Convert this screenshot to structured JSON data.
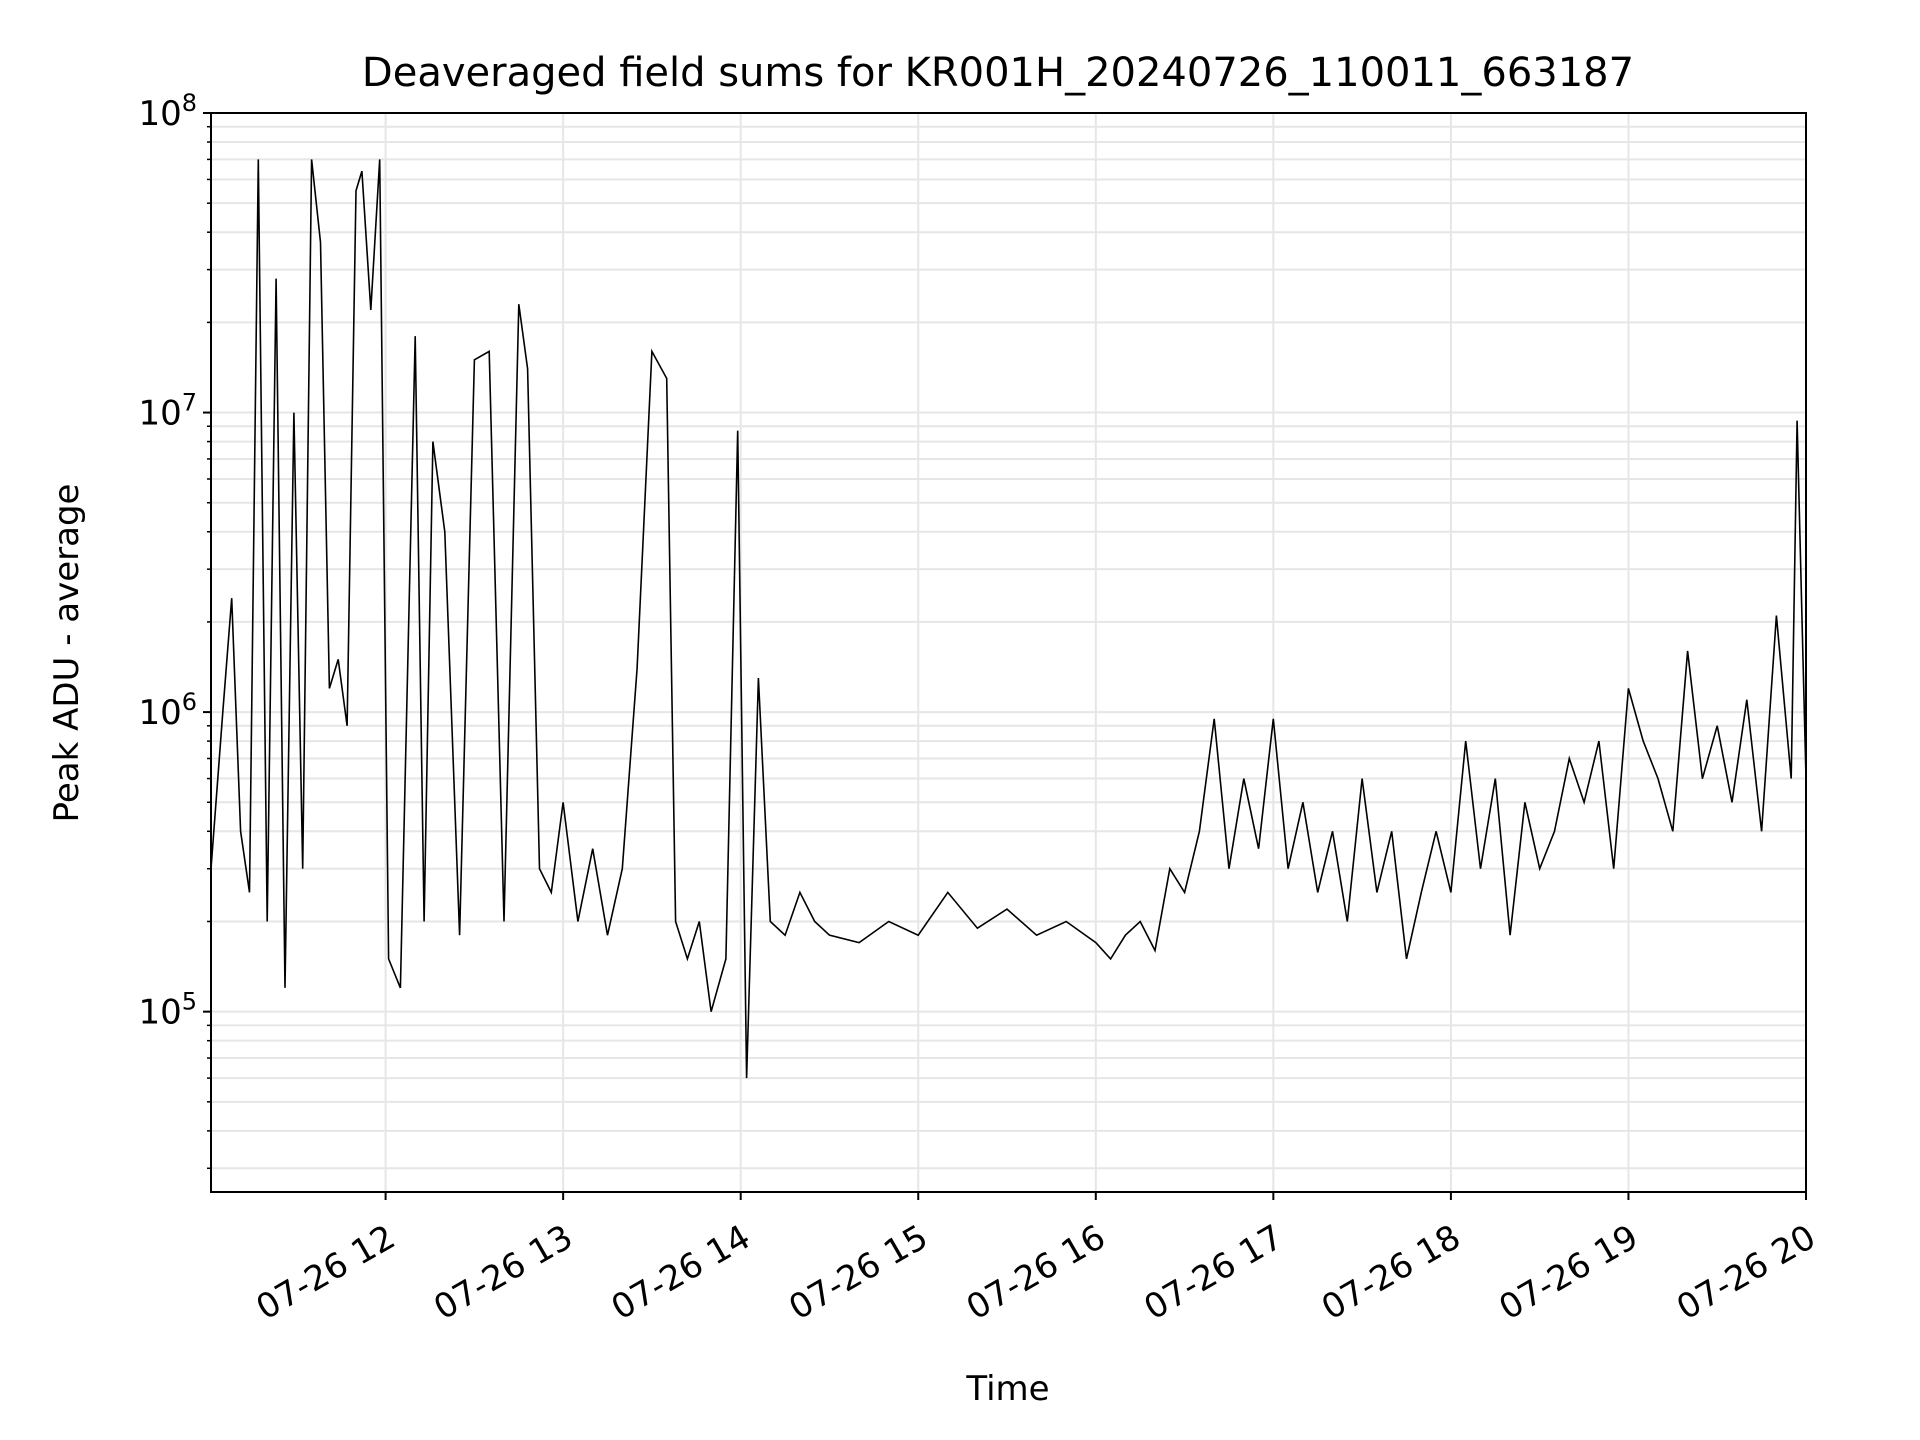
{
  "chart_data": {
    "type": "line",
    "title": "Deaveraged field sums for KR001H_20240726_110011_663187",
    "xlabel": "Time",
    "ylabel": "Peak ADU - average",
    "yscale": "log",
    "ylim": [
      25000,
      100000000
    ],
    "xlim": [
      "07-26 11:01",
      "07-26 20:00"
    ],
    "grid": "major and minor",
    "line_color": "#000000",
    "grid_color": "#e6e6e6",
    "x_ticks": [
      {
        "value": "07-26 12",
        "label": "07-26 12"
      },
      {
        "value": "07-26 13",
        "label": "07-26 13"
      },
      {
        "value": "07-26 14",
        "label": "07-26 14"
      },
      {
        "value": "07-26 15",
        "label": "07-26 15"
      },
      {
        "value": "07-26 16",
        "label": "07-26 16"
      },
      {
        "value": "07-26 17",
        "label": "07-26 17"
      },
      {
        "value": "07-26 18",
        "label": "07-26 18"
      },
      {
        "value": "07-26 19",
        "label": "07-26 19"
      },
      {
        "value": "07-26 20",
        "label": "07-26 20"
      }
    ],
    "y_ticks": [
      {
        "value": 100000,
        "base": "10",
        "exp": "5"
      },
      {
        "value": 1000000,
        "base": "10",
        "exp": "6"
      },
      {
        "value": 10000000,
        "base": "10",
        "exp": "7"
      },
      {
        "value": 100000000,
        "base": "10",
        "exp": "8"
      }
    ],
    "series": [
      {
        "x": [
          "07-26 11:01",
          "07-26 11:05",
          "07-26 11:08",
          "07-26 11:11",
          "07-26 11:14",
          "07-26 11:17",
          "07-26 11:20",
          "07-26 11:23",
          "07-26 11:26",
          "07-26 11:29",
          "07-26 11:32",
          "07-26 11:35",
          "07-26 11:38",
          "07-26 11:41",
          "07-26 11:44",
          "07-26 11:47",
          "07-26 11:50",
          "07-26 11:52",
          "07-26 11:55",
          "07-26 11:58",
          "07-26 12:01",
          "07-26 12:05",
          "07-26 12:10",
          "07-26 12:13",
          "07-26 12:16",
          "07-26 12:20",
          "07-26 12:25",
          "07-26 12:30",
          "07-26 12:35",
          "07-26 12:40",
          "07-26 12:45",
          "07-26 12:48",
          "07-26 12:52",
          "07-26 12:56",
          "07-26 13:00",
          "07-26 13:05",
          "07-26 13:10",
          "07-26 13:15",
          "07-26 13:20",
          "07-26 13:25",
          "07-26 13:30",
          "07-26 13:35",
          "07-26 13:38",
          "07-26 13:42",
          "07-26 13:46",
          "07-26 13:50",
          "07-26 13:55",
          "07-26 13:59",
          "07-26 14:02",
          "07-26 14:06",
          "07-26 14:10",
          "07-26 14:15",
          "07-26 14:20",
          "07-26 14:25",
          "07-26 14:30",
          "07-26 14:40",
          "07-26 14:50",
          "07-26 15:00",
          "07-26 15:10",
          "07-26 15:20",
          "07-26 15:30",
          "07-26 15:40",
          "07-26 15:50",
          "07-26 16:00",
          "07-26 16:05",
          "07-26 16:10",
          "07-26 16:15",
          "07-26 16:20",
          "07-26 16:25",
          "07-26 16:30",
          "07-26 16:35",
          "07-26 16:40",
          "07-26 16:45",
          "07-26 16:50",
          "07-26 16:55",
          "07-26 17:00",
          "07-26 17:05",
          "07-26 17:10",
          "07-26 17:15",
          "07-26 17:20",
          "07-26 17:25",
          "07-26 17:30",
          "07-26 17:35",
          "07-26 17:40",
          "07-26 17:45",
          "07-26 17:50",
          "07-26 17:55",
          "07-26 18:00",
          "07-26 18:05",
          "07-26 18:10",
          "07-26 18:15",
          "07-26 18:20",
          "07-26 18:25",
          "07-26 18:30",
          "07-26 18:35",
          "07-26 18:40",
          "07-26 18:45",
          "07-26 18:50",
          "07-26 18:55",
          "07-26 19:00",
          "07-26 19:05",
          "07-26 19:10",
          "07-26 19:15",
          "07-26 19:20",
          "07-26 19:25",
          "07-26 19:30",
          "07-26 19:35",
          "07-26 19:40",
          "07-26 19:45",
          "07-26 19:50",
          "07-26 19:55",
          "07-26 19:57",
          "07-26 19:59",
          "07-26 20:00"
        ],
        "y": [
          300000,
          1000000,
          2400000,
          400000,
          250000,
          70000000,
          200000,
          28000000,
          120000,
          10000000,
          300000,
          70000000,
          37000000,
          1200000,
          1500000,
          900000,
          55000000,
          64000000,
          22000000,
          70000000,
          150000,
          120000,
          18000000,
          200000,
          8000000,
          4000000,
          180000,
          15000000,
          16000000,
          200000,
          23000000,
          14000000,
          300000,
          250000,
          500000,
          200000,
          350000,
          180000,
          300000,
          1400000,
          16000000,
          13000000,
          200000,
          150000,
          200000,
          100000,
          150000,
          8700000,
          60000,
          1300000,
          200000,
          180000,
          250000,
          200000,
          180000,
          170000,
          200000,
          180000,
          250000,
          190000,
          220000,
          180000,
          200000,
          170000,
          150000,
          180000,
          200000,
          160000,
          300000,
          250000,
          400000,
          950000,
          300000,
          600000,
          350000,
          950000,
          300000,
          500000,
          250000,
          400000,
          200000,
          600000,
          250000,
          400000,
          150000,
          250000,
          400000,
          250000,
          800000,
          300000,
          600000,
          180000,
          500000,
          300000,
          400000,
          700000,
          500000,
          800000,
          300000,
          1200000,
          800000,
          600000,
          400000,
          1600000,
          600000,
          900000,
          500000,
          1100000,
          400000,
          2100000,
          600000,
          9400000,
          1500000,
          600000
        ]
      }
    ]
  }
}
